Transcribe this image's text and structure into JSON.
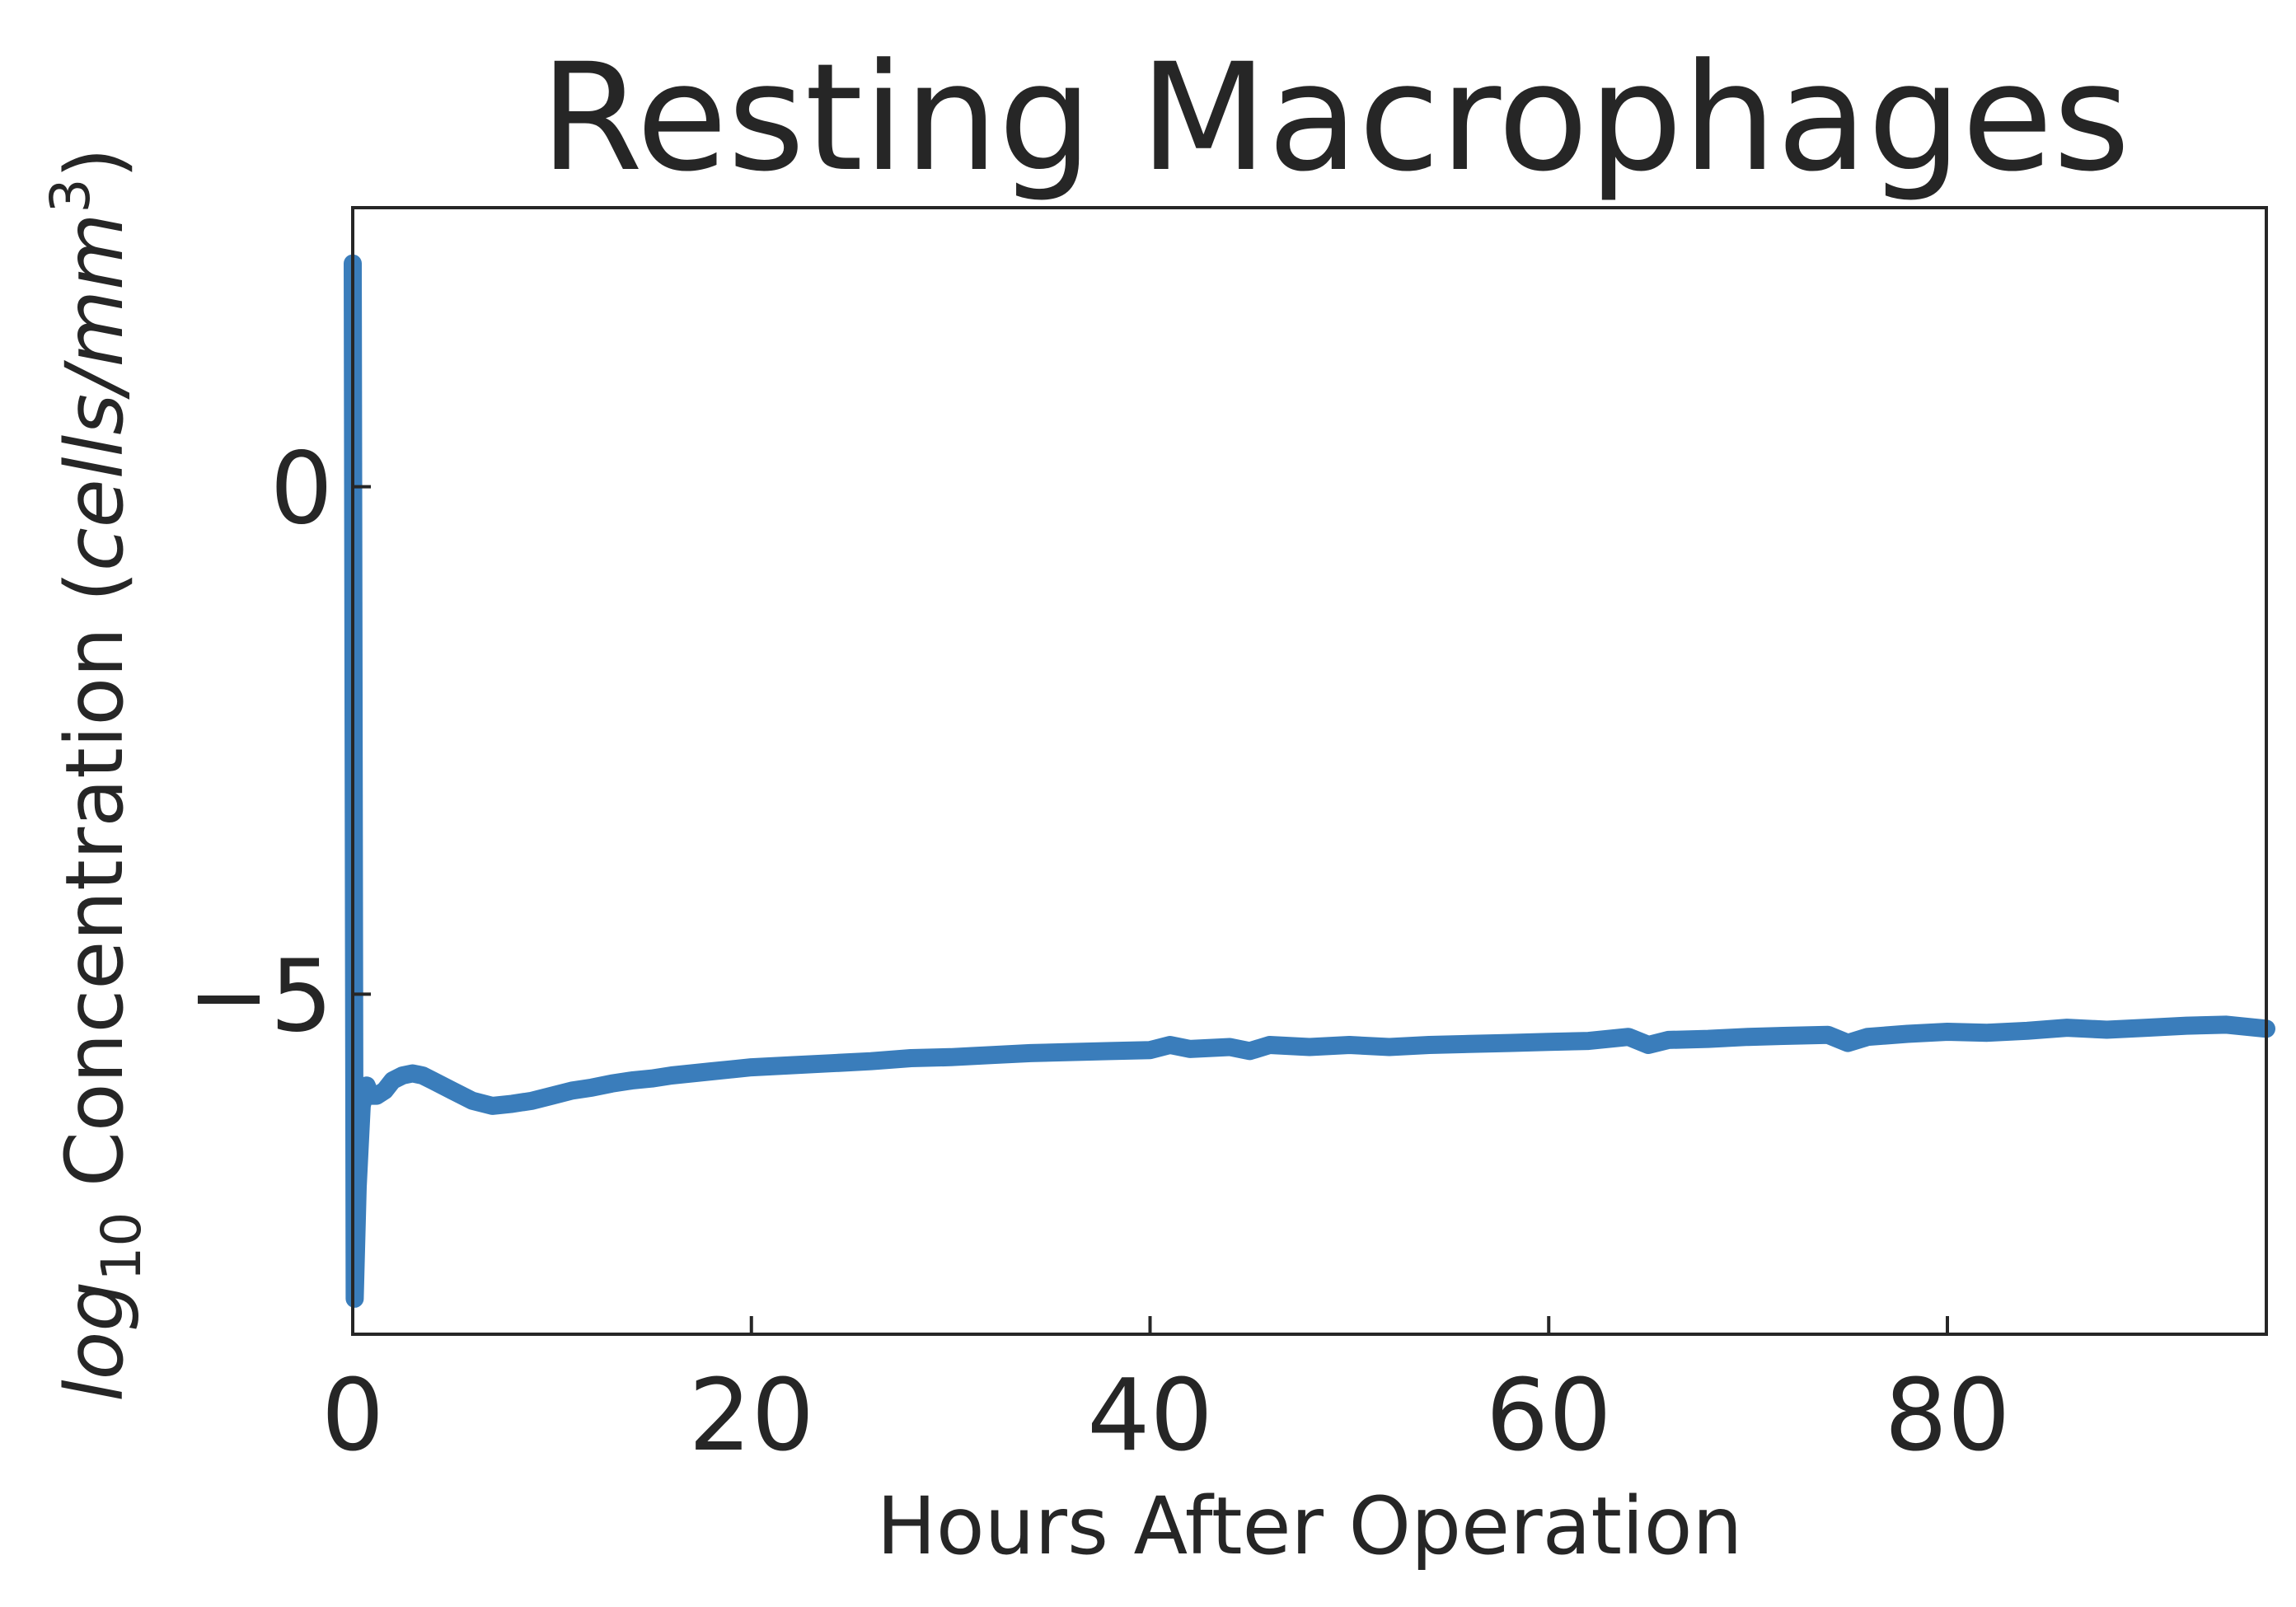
{
  "chart_data": {
    "type": "line",
    "title": "Resting Macrophages",
    "xlabel": "Hours After Operation",
    "ylabel": {
      "italic_prefix": "log",
      "subscript": "10",
      "text": " Concentration (",
      "italic_unit": "cells/mm",
      "superscript": "3",
      "close": ")"
    },
    "xlim": [
      0,
      96
    ],
    "ylim": [
      -8.35,
      2.75
    ],
    "xticks": [
      0,
      20,
      40,
      60,
      80
    ],
    "xtick_labels": [
      "0",
      "20",
      "40",
      "60",
      "80"
    ],
    "yticks": [
      0,
      -5
    ],
    "ytick_labels": [
      "0",
      "−5"
    ],
    "grid": false,
    "series": [
      {
        "color": "#3a7dbb",
        "x": [
          0,
          0.1,
          0.25,
          0.45,
          0.7,
          0.9,
          1.2,
          1.6,
          2.0,
          2.5,
          3.0,
          3.5,
          4.0,
          5.0,
          6.0,
          7.0,
          8.0,
          9.0,
          10,
          11,
          12,
          13,
          14,
          15,
          16,
          17,
          18,
          19,
          20,
          21,
          22,
          24,
          26,
          28,
          30,
          32,
          34,
          36,
          38,
          40,
          41,
          42,
          44,
          45,
          46,
          48,
          50,
          52,
          54,
          56,
          58,
          60,
          62,
          64,
          65,
          66,
          68,
          70,
          72,
          74,
          75,
          76,
          78,
          80,
          82,
          84,
          86,
          88,
          90,
          92,
          94,
          96
        ],
        "values": [
          2.2,
          -8.0,
          -6.9,
          -6.1,
          -5.9,
          -6.0,
          -6.0,
          -5.95,
          -5.85,
          -5.8,
          -5.78,
          -5.8,
          -5.85,
          -5.95,
          -6.05,
          -6.1,
          -6.08,
          -6.05,
          -6.0,
          -5.95,
          -5.92,
          -5.88,
          -5.85,
          -5.83,
          -5.8,
          -5.78,
          -5.76,
          -5.74,
          -5.72,
          -5.71,
          -5.7,
          -5.68,
          -5.66,
          -5.63,
          -5.62,
          -5.6,
          -5.58,
          -5.57,
          -5.56,
          -5.55,
          -5.5,
          -5.54,
          -5.52,
          -5.56,
          -5.5,
          -5.52,
          -5.5,
          -5.52,
          -5.5,
          -5.49,
          -5.48,
          -5.47,
          -5.46,
          -5.42,
          -5.5,
          -5.45,
          -5.44,
          -5.42,
          -5.41,
          -5.4,
          -5.48,
          -5.42,
          -5.39,
          -5.37,
          -5.38,
          -5.36,
          -5.33,
          -5.35,
          -5.33,
          -5.31,
          -5.3,
          -5.34
        ]
      }
    ]
  }
}
